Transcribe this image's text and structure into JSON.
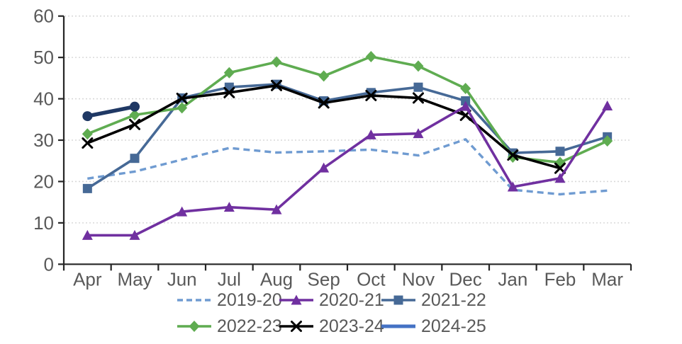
{
  "chart_data": {
    "type": "line",
    "title": "",
    "xlabel": "",
    "ylabel": "",
    "categories": [
      "Apr",
      "May",
      "Jun",
      "Jul",
      "Aug",
      "Sep",
      "Oct",
      "Nov",
      "Dec",
      "Jan",
      "Feb",
      "Mar"
    ],
    "ylim": [
      0,
      60
    ],
    "ytick_step": 10,
    "yticks": [
      "0",
      "10",
      "20",
      "30",
      "40",
      "50",
      "60"
    ],
    "grid": "horizontal-dotted",
    "legend_position": "bottom-two-rows",
    "legend_rows": [
      [
        "2019-20",
        "2020-21",
        "2021-22"
      ],
      [
        "2022-23",
        "2023-24",
        "2024-25"
      ]
    ],
    "series": [
      {
        "name": "2019-20",
        "color": "#6F9BD1",
        "line_style": "dashed",
        "marker": "none",
        "values": [
          20.7,
          22.4,
          25.3,
          28.1,
          27.0,
          27.3,
          27.7,
          26.3,
          30.2,
          18.0,
          16.9,
          17.8
        ]
      },
      {
        "name": "2020-21",
        "color": "#7030A0",
        "line_style": "solid",
        "marker": "triangle",
        "values": [
          7.0,
          7.0,
          12.7,
          13.8,
          13.2,
          23.3,
          31.3,
          31.6,
          38.2,
          18.7,
          20.8,
          38.3
        ]
      },
      {
        "name": "2021-22",
        "color": "#466996",
        "line_style": "solid",
        "marker": "square",
        "values": [
          18.3,
          25.6,
          40.2,
          42.8,
          43.5,
          39.5,
          41.5,
          42.8,
          39.5,
          26.9,
          27.3,
          30.8
        ]
      },
      {
        "name": "2022-23",
        "color": "#5FAC51",
        "line_style": "solid",
        "marker": "diamond",
        "values": [
          31.5,
          36.1,
          37.8,
          46.3,
          48.9,
          45.5,
          50.2,
          47.9,
          42.5,
          25.9,
          24.6,
          29.8
        ]
      },
      {
        "name": "2023-24",
        "color": "#000000",
        "line_style": "solid",
        "marker": "x",
        "values": [
          29.3,
          33.8,
          40.1,
          41.5,
          43.2,
          39.0,
          40.8,
          40.2,
          36.0,
          26.4,
          23.2,
          null
        ]
      },
      {
        "name": "2024-25",
        "color": "#1F3864",
        "legend_color": "#4472C4",
        "line_style": "solid",
        "marker": "circle",
        "legend_marker": "none",
        "values": [
          35.8,
          38.1,
          null,
          null,
          null,
          null,
          null,
          null,
          null,
          null,
          null,
          null
        ]
      }
    ],
    "colors": {
      "axis_text": "#595959",
      "axis_line": "#262626",
      "gridline": "#D9D9D9",
      "background": "#FFFFFF"
    }
  }
}
